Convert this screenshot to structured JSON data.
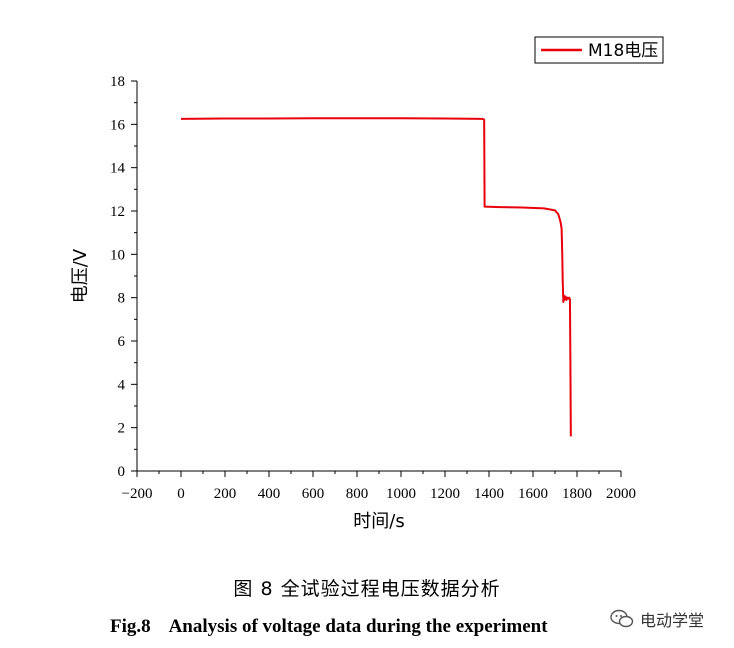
{
  "chart_data": {
    "type": "line",
    "xlabel": "时间/s",
    "ylabel": "电压/V",
    "xlim": [
      -200,
      2000
    ],
    "ylim": [
      0,
      18
    ],
    "x_ticks": [
      "-200",
      "0",
      "200",
      "400",
      "600",
      "800",
      "1000",
      "1200",
      "1400",
      "1600",
      "1800",
      "2000"
    ],
    "y_ticks": [
      "0",
      "2",
      "4",
      "6",
      "8",
      "10",
      "12",
      "14",
      "16",
      "18"
    ],
    "legend_position": "top-right",
    "series": [
      {
        "name": "M18电压",
        "color": "#e8000b",
        "x": [
          0,
          200,
          400,
          600,
          800,
          1000,
          1200,
          1370,
          1378,
          1380,
          1450,
          1550,
          1650,
          1700,
          1715,
          1725,
          1730,
          1733,
          1735,
          1738,
          1740,
          1743,
          1748,
          1752,
          1757,
          1760,
          1765,
          1768,
          1770,
          1772
        ],
        "y": [
          16.25,
          16.27,
          16.27,
          16.28,
          16.28,
          16.28,
          16.27,
          16.25,
          16.22,
          12.2,
          12.18,
          12.16,
          12.12,
          12.03,
          11.85,
          11.5,
          11.2,
          10.0,
          8.8,
          7.8,
          8.1,
          7.9,
          8.05,
          7.9,
          8.0,
          7.95,
          8.0,
          7.9,
          5.0,
          1.6
        ]
      }
    ]
  },
  "captions": {
    "cn": "图 8  全试验过程电压数据分析",
    "en": "Fig.8    Analysis of voltage data during the experiment"
  },
  "watermark": {
    "text": "电动学堂",
    "icon": "wechat-icon"
  }
}
